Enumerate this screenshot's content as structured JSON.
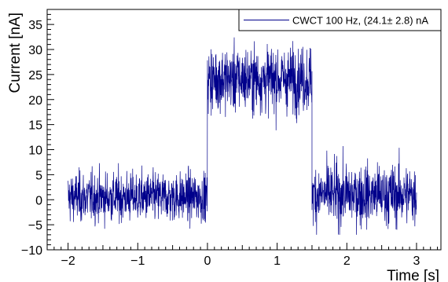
{
  "chart_data": {
    "type": "line",
    "title": "",
    "xlabel": "Time [s]",
    "ylabel": "Current [nA]",
    "xlim": [
      -2.3,
      3.35
    ],
    "ylim": [
      -10,
      38
    ],
    "x_ticks": [
      -2,
      -1,
      0,
      1,
      2,
      3
    ],
    "x_tick_labels": [
      "−2",
      "−1",
      "0",
      "1",
      "2",
      "3"
    ],
    "y_ticks": [
      -10,
      -5,
      0,
      5,
      10,
      15,
      20,
      25,
      30,
      35
    ],
    "y_tick_labels": [
      "−10",
      "−5",
      "0",
      "5",
      "10",
      "15",
      "20",
      "25",
      "30",
      "35"
    ],
    "grid": false,
    "legend_position": "top-right",
    "series": [
      {
        "name": "CWCT 100 Hz, (24.1± 2.8) nA",
        "color": "#00008b",
        "segments": [
          {
            "x_start": -2.0,
            "x_end": 0.0,
            "mean": 0.5,
            "noise_range": [
              -7,
              9
            ]
          },
          {
            "x_start": 0.0,
            "x_end": 1.5,
            "mean": 24.1,
            "noise_range": [
              13,
              34
            ]
          },
          {
            "x_start": 1.5,
            "x_end": 3.0,
            "mean": 1.0,
            "noise_range": [
              -7,
              13
            ]
          }
        ]
      }
    ]
  }
}
